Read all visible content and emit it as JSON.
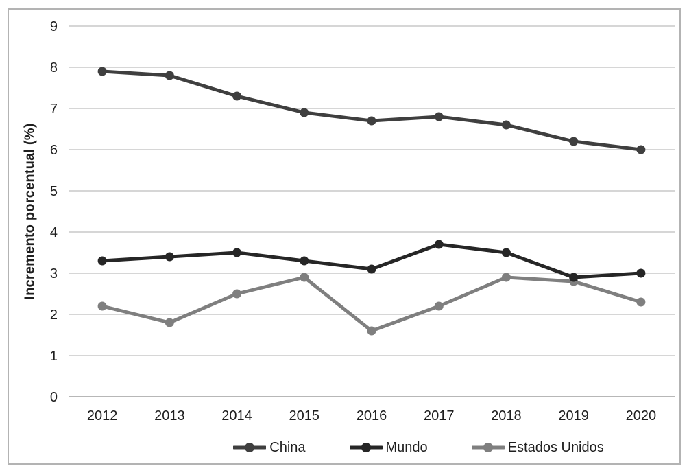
{
  "chart_data": {
    "type": "line",
    "title": "",
    "xlabel": "",
    "ylabel": "Incremento porcentual (%)",
    "categories": [
      "2012",
      "2013",
      "2014",
      "2015",
      "2016",
      "2017",
      "2018",
      "2019",
      "2020"
    ],
    "series": [
      {
        "name": "China",
        "color": "#3f3f3f",
        "values": [
          7.9,
          7.8,
          7.3,
          6.9,
          6.7,
          6.8,
          6.6,
          6.2,
          6.0
        ]
      },
      {
        "name": "Mundo",
        "color": "#262626",
        "values": [
          3.3,
          3.4,
          3.5,
          3.3,
          3.1,
          3.7,
          3.5,
          2.9,
          3.0
        ]
      },
      {
        "name": "Estados Unidos",
        "color": "#7f7f7f",
        "values": [
          2.2,
          1.8,
          2.5,
          2.9,
          1.6,
          2.2,
          2.9,
          2.8,
          2.3
        ]
      }
    ],
    "ylim": [
      0,
      9
    ],
    "ytick_step": 1,
    "yticks": [
      "0",
      "1",
      "2",
      "3",
      "4",
      "5",
      "6",
      "7",
      "8",
      "9"
    ],
    "grid": true,
    "legend_position": "bottom"
  },
  "colors": {
    "gridline": "#c8c8c8",
    "axis_line": "#9f9f9f",
    "frame_border": "#b3b3b3",
    "text": "#1f1f1f",
    "background": "#ffffff"
  }
}
